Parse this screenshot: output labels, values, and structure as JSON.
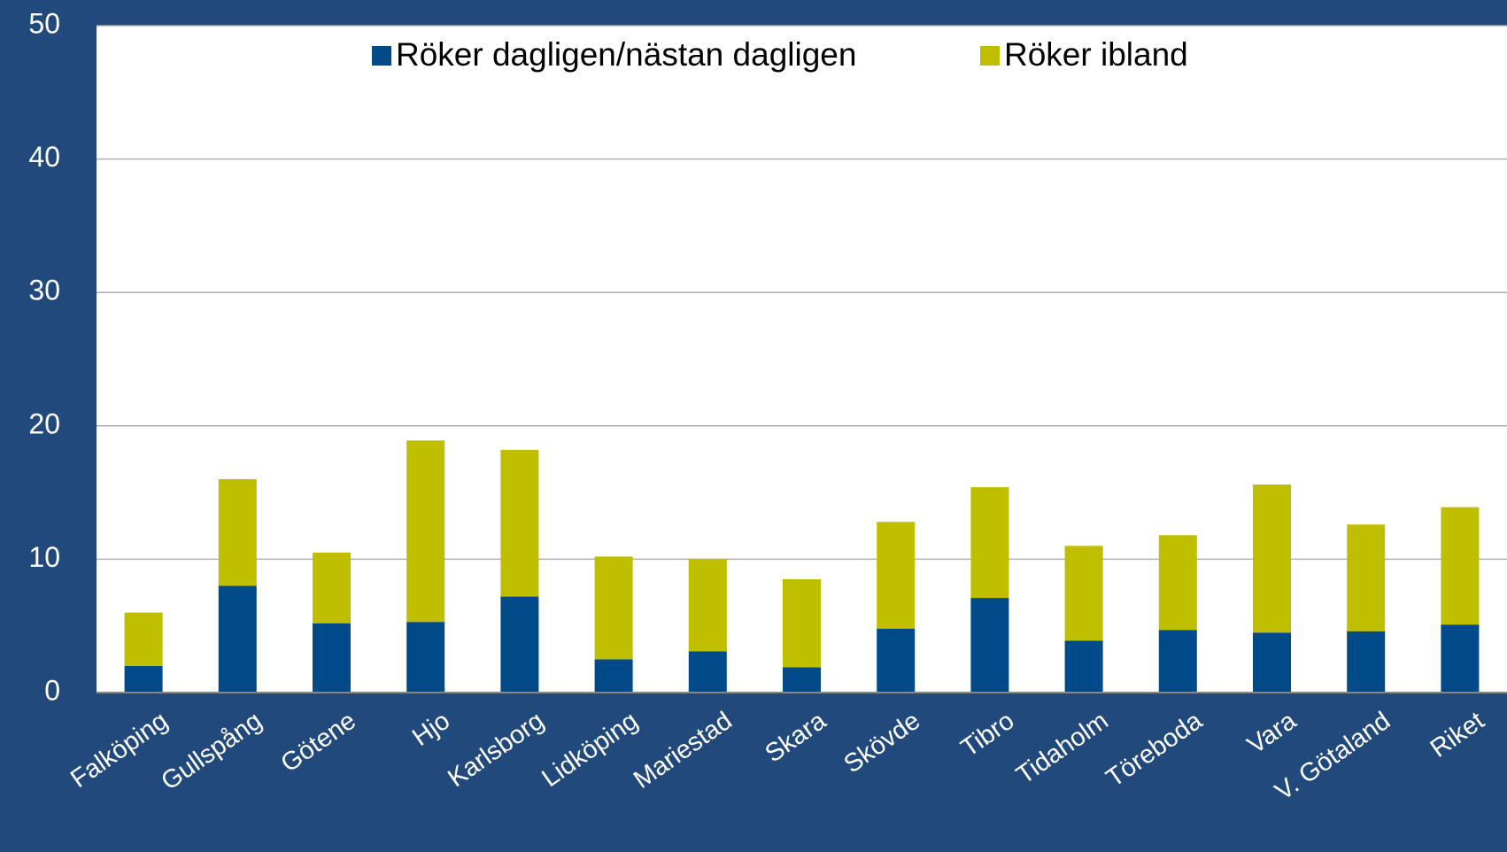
{
  "chart_data": {
    "type": "stacked_bar",
    "categories": [
      "Falköping",
      "Gullspång",
      "Götene",
      "Hjo",
      "Karlsborg",
      "Lidköping",
      "Mariestad",
      "Skara",
      "Skövde",
      "Tibro",
      "Tidaholm",
      "Töreboda",
      "Vara",
      "V. Götaland",
      "Riket"
    ],
    "series": [
      {
        "name": "Röker dagligen/nästan dagligen",
        "color": "#004a8a",
        "values": [
          2.0,
          8.0,
          5.2,
          5.3,
          7.2,
          2.5,
          3.1,
          1.9,
          4.8,
          7.1,
          3.9,
          4.7,
          4.5,
          4.6,
          5.1
        ]
      },
      {
        "name": "Röker ibland",
        "color": "#bfbf00",
        "values": [
          4.0,
          8.0,
          5.3,
          13.6,
          11.0,
          7.7,
          6.9,
          6.6,
          8.0,
          8.3,
          7.1,
          7.1,
          11.1,
          8.0,
          8.8
        ]
      }
    ],
    "ylim": [
      0,
      50
    ],
    "yticks": [
      0,
      10,
      20,
      30,
      40,
      50
    ],
    "grid": true,
    "legend": "top"
  }
}
